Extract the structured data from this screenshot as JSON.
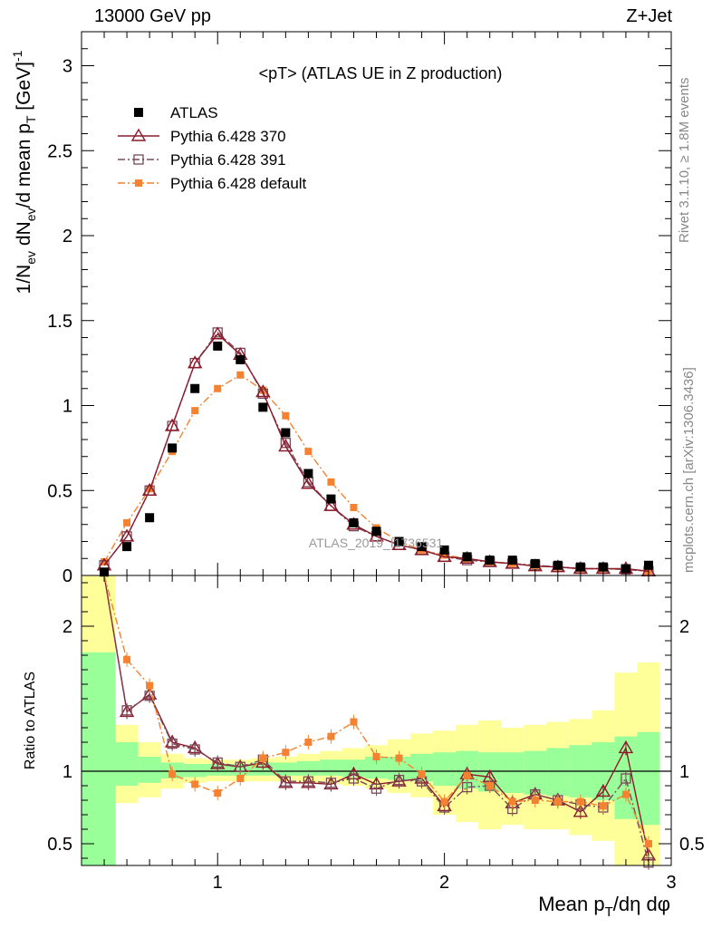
{
  "header": {
    "left": "13000 GeV pp",
    "right": "Z+Jet"
  },
  "side_labels": {
    "rivet": "Rivet 3.1.10, ≥ 1.8M events",
    "mcplots": "mcplots.cern.ch [arXiv:1306.3436]"
  },
  "chart_data": {
    "type": "scatter",
    "title": "<pT> (ATLAS UE in Z production)",
    "watermark": "ATLAS_2019_I1736531",
    "main_panel": {
      "xlabel": "Mean p_T/dη dφ",
      "ylabel": "1/N_ev dN_ev/d mean p_T [GeV]^-1",
      "xlim": [
        0.4,
        3.0
      ],
      "ylim": [
        0,
        3.2
      ],
      "y_ticks": [
        "0",
        "0.5",
        "1",
        "1.5",
        "2",
        "2.5",
        "3"
      ],
      "x_ticks": [
        "1",
        "2",
        "3"
      ],
      "x": [
        0.5,
        0.6,
        0.7,
        0.8,
        0.9,
        1.0,
        1.1,
        1.2,
        1.3,
        1.4,
        1.5,
        1.6,
        1.7,
        1.8,
        1.9,
        2.0,
        2.1,
        2.2,
        2.3,
        2.4,
        2.5,
        2.6,
        2.7,
        2.8,
        2.9
      ],
      "series": [
        {
          "name": "ATLAS",
          "color": "#000000",
          "marker": "filled-square",
          "values": [
            0.02,
            0.17,
            0.34,
            0.75,
            1.1,
            1.35,
            1.27,
            0.99,
            0.84,
            0.6,
            0.45,
            0.31,
            0.26,
            0.2,
            0.17,
            0.15,
            0.11,
            0.09,
            0.09,
            0.07,
            0.06,
            0.05,
            0.05,
            0.04,
            0.06
          ]
        },
        {
          "name": "Pythia 6.428 370",
          "color": "#8b1a2b",
          "marker": "open-triangle",
          "line": "solid",
          "values": [
            0.06,
            0.23,
            0.5,
            0.88,
            1.25,
            1.42,
            1.3,
            1.08,
            0.76,
            0.54,
            0.41,
            0.3,
            0.23,
            0.18,
            0.15,
            0.11,
            0.1,
            0.08,
            0.07,
            0.055,
            0.05,
            0.04,
            0.04,
            0.04,
            0.025
          ]
        },
        {
          "name": "Pythia 6.428 391",
          "color": "#7a4a5a",
          "marker": "open-square",
          "line": "dash-dot",
          "values": [
            0.06,
            0.23,
            0.5,
            0.88,
            1.25,
            1.43,
            1.31,
            1.07,
            0.78,
            0.55,
            0.41,
            0.29,
            0.23,
            0.18,
            0.15,
            0.11,
            0.09,
            0.08,
            0.07,
            0.06,
            0.05,
            0.04,
            0.04,
            0.035,
            0.025
          ]
        },
        {
          "name": "Pythia 6.428 default",
          "color": "#f58231",
          "marker": "filled-square-small",
          "line": "dash-dot",
          "values": [
            0.08,
            0.31,
            0.51,
            0.73,
            0.97,
            1.1,
            1.18,
            1.09,
            0.94,
            0.73,
            0.55,
            0.4,
            0.28,
            0.2,
            0.15,
            0.12,
            0.1,
            0.08,
            0.07,
            0.055,
            0.05,
            0.04,
            0.04,
            0.035,
            0.025
          ]
        }
      ]
    },
    "ratio_panel": {
      "ylabel": "Ratio to ATLAS",
      "ylim": [
        0.35,
        2.35
      ],
      "y_ticks": [
        "0.5",
        "1",
        "2"
      ],
      "reference": 1.0,
      "band_edges": [
        0.4,
        0.55,
        0.65,
        0.75,
        0.85,
        0.95,
        1.05,
        1.15,
        1.25,
        1.35,
        1.45,
        1.55,
        1.65,
        1.75,
        1.85,
        1.95,
        2.05,
        2.15,
        2.25,
        2.35,
        2.45,
        2.55,
        2.65,
        2.75,
        2.85,
        2.95
      ],
      "band_green": [
        [
          0.35,
          1.82
        ],
        [
          0.9,
          1.2
        ],
        [
          0.92,
          1.1
        ],
        [
          0.95,
          1.06
        ],
        [
          0.96,
          1.05
        ],
        [
          0.97,
          1.05
        ],
        [
          0.97,
          1.05
        ],
        [
          0.97,
          1.06
        ],
        [
          0.97,
          1.06
        ],
        [
          0.97,
          1.07
        ],
        [
          0.97,
          1.08
        ],
        [
          0.96,
          1.08
        ],
        [
          0.95,
          1.1
        ],
        [
          0.94,
          1.1
        ],
        [
          0.93,
          1.12
        ],
        [
          0.9,
          1.13
        ],
        [
          0.88,
          1.14
        ],
        [
          0.86,
          1.13
        ],
        [
          0.85,
          1.13
        ],
        [
          0.84,
          1.14
        ],
        [
          0.83,
          1.16
        ],
        [
          0.82,
          1.18
        ],
        [
          0.8,
          1.2
        ],
        [
          0.67,
          1.24
        ],
        [
          0.63,
          1.27
        ]
      ],
      "band_yellow": [
        [
          0.35,
          2.35
        ],
        [
          0.78,
          1.32
        ],
        [
          0.82,
          1.2
        ],
        [
          0.88,
          1.12
        ],
        [
          0.92,
          1.09
        ],
        [
          0.93,
          1.08
        ],
        [
          0.93,
          1.08
        ],
        [
          0.93,
          1.09
        ],
        [
          0.93,
          1.1
        ],
        [
          0.92,
          1.12
        ],
        [
          0.91,
          1.14
        ],
        [
          0.9,
          1.16
        ],
        [
          0.88,
          1.18
        ],
        [
          0.85,
          1.22
        ],
        [
          0.82,
          1.26
        ],
        [
          0.7,
          1.28
        ],
        [
          0.65,
          1.32
        ],
        [
          0.6,
          1.35
        ],
        [
          0.63,
          1.3
        ],
        [
          0.6,
          1.32
        ],
        [
          0.6,
          1.34
        ],
        [
          0.56,
          1.36
        ],
        [
          0.52,
          1.42
        ],
        [
          0.35,
          1.68
        ],
        [
          0.35,
          1.75
        ]
      ],
      "series": [
        {
          "name": "Pythia 6.428 370",
          "values": [
            2.5,
            1.41,
            1.53,
            1.2,
            1.16,
            1.05,
            1.03,
            1.06,
            0.92,
            0.92,
            0.91,
            0.98,
            0.91,
            0.93,
            0.95,
            0.76,
            0.98,
            0.96,
            0.78,
            0.84,
            0.8,
            0.72,
            0.86,
            1.16,
            0.42
          ]
        },
        {
          "name": "Pythia 6.428 391",
          "values": [
            2.5,
            1.42,
            1.52,
            1.19,
            1.15,
            1.06,
            1.03,
            1.08,
            0.93,
            0.93,
            0.92,
            0.95,
            0.88,
            0.94,
            0.93,
            0.75,
            0.89,
            0.9,
            0.74,
            0.84,
            0.8,
            0.77,
            0.75,
            0.95,
            0.37
          ]
        },
        {
          "name": "Pythia 6.428 default",
          "values": [
            2.5,
            1.77,
            1.59,
            0.98,
            0.91,
            0.85,
            0.95,
            1.09,
            1.13,
            1.2,
            1.24,
            1.34,
            1.1,
            1.09,
            0.98,
            0.79,
            0.97,
            0.9,
            0.79,
            0.8,
            0.79,
            0.79,
            0.76,
            0.84,
            0.5
          ]
        }
      ]
    },
    "legend_position": "top-left"
  }
}
